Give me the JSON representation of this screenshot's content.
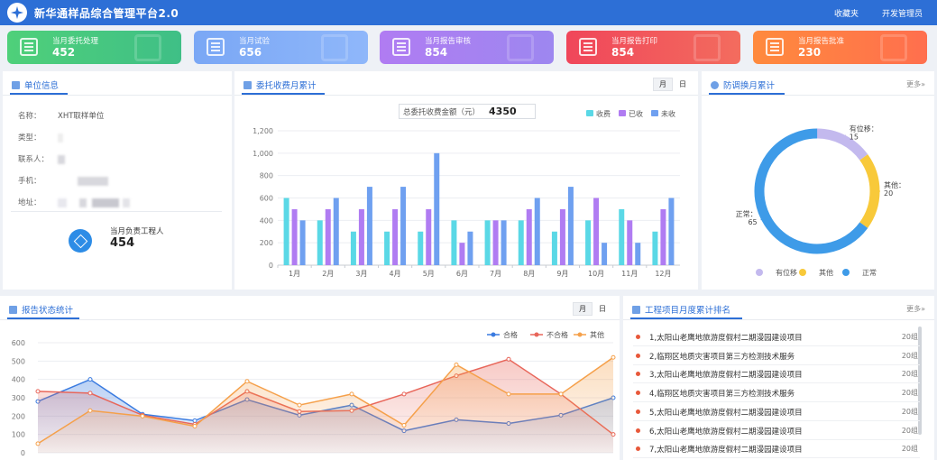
{
  "header": {
    "title": "新华通样品综合管理平台2.0",
    "links": [
      "收藏夹",
      "开发管理员"
    ]
  },
  "stats": [
    {
      "label": "当月委托处理",
      "value": "452",
      "color_a": "#4fd07a",
      "color_b": "#3fbf86"
    },
    {
      "label": "当月试验",
      "value": "656",
      "color_a": "#7aa7f5",
      "color_b": "#8fb7fa"
    },
    {
      "label": "当月报告审核",
      "value": "854",
      "color_a": "#b07cf2",
      "color_b": "#9d87f0"
    },
    {
      "label": "当月报告打印",
      "value": "854",
      "color_a": "#f0465a",
      "color_b": "#f36c5e"
    },
    {
      "label": "当月报告批准",
      "value": "230",
      "color_a": "#ff8a3d",
      "color_b": "#ff6f4e"
    }
  ],
  "unit": {
    "title": "单位信息",
    "rows": [
      {
        "key": "名称：",
        "value": "XHT取样单位"
      },
      {
        "key": "类型：",
        "value": ""
      },
      {
        "key": "联系人：",
        "value": ""
      },
      {
        "key": "手机：",
        "value": ""
      },
      {
        "key": "地址：",
        "value": ""
      }
    ],
    "engineer_label": "当月负责工程人",
    "engineer_value": "454"
  },
  "fee": {
    "title": "委托收费月累计",
    "toggle": [
      "月",
      "日"
    ],
    "total_label": "总委托收费金额（元）",
    "total_value": "4350"
  },
  "chart_data": [
    {
      "type": "bar",
      "categories": [
        "1月",
        "2月",
        "3月",
        "4月",
        "5月",
        "6月",
        "7月",
        "8月",
        "9月",
        "10月",
        "11月",
        "12月"
      ],
      "series": [
        {
          "name": "收费",
          "color": "#5ad8e6",
          "values": [
            600,
            400,
            300,
            300,
            300,
            400,
            400,
            400,
            300,
            400,
            500,
            300
          ]
        },
        {
          "name": "已收",
          "color": "#b07cf2",
          "values": [
            500,
            500,
            500,
            500,
            500,
            200,
            400,
            500,
            500,
            600,
            400,
            500
          ]
        },
        {
          "name": "未收",
          "color": "#6fa0f0",
          "values": [
            400,
            600,
            700,
            700,
            1000,
            300,
            400,
            600,
            700,
            200,
            200,
            600
          ]
        }
      ],
      "yticks": [
        "0",
        "200",
        "400",
        "600",
        "800",
        "1,000",
        "1,200"
      ],
      "ylim": [
        0,
        1200
      ],
      "grid": true,
      "legend": "top-right"
    },
    {
      "type": "pie",
      "categories": [
        "有位移",
        "其他",
        "正常"
      ],
      "values": [
        15,
        20,
        65
      ],
      "colors": [
        "#c3b9ee",
        "#f8c93a",
        "#3e9be8"
      ],
      "slice_labels": [
        "有位移：\n15",
        "其他：\n20",
        "正常：\n65"
      ],
      "legend": "bottom"
    },
    {
      "type": "area",
      "series": [
        {
          "name": "合格",
          "color": "#3a7be0",
          "values": [
            280,
            400,
            210,
            175,
            290,
            205,
            260,
            120,
            180,
            160,
            205,
            300
          ]
        },
        {
          "name": "不合格",
          "color": "#e8665a",
          "values": [
            335,
            325,
            205,
            155,
            335,
            225,
            230,
            320,
            420,
            510,
            320,
            100
          ]
        },
        {
          "name": "其他",
          "color": "#f5a04a",
          "values": [
            50,
            230,
            200,
            145,
            390,
            260,
            320,
            150,
            480,
            320,
            320,
            520
          ]
        }
      ],
      "yticks": [
        "0",
        "100",
        "200",
        "300",
        "400",
        "500",
        "600"
      ],
      "ylim": [
        0,
        600
      ],
      "grid": true,
      "legend": "top-right"
    }
  ],
  "fangtiao": {
    "title": "防调换月累计",
    "more": "更多»"
  },
  "report": {
    "title": "报告状态统计",
    "toggle": [
      "月",
      "日"
    ]
  },
  "ranking": {
    "title": "工程项目月度累计排名",
    "more": "更多»",
    "items": [
      {
        "name": "1,太阳山老鹰地旅游度假村二期漫园建设项目",
        "count": "20组"
      },
      {
        "name": "2,临翔区地质灾害项目第三方检测技术服务",
        "count": "20组"
      },
      {
        "name": "3,太阳山老鹰地旅游度假村二期漫园建设项目",
        "count": "20组"
      },
      {
        "name": "4,临翔区地质灾害项目第三方检测技术服务",
        "count": "20组"
      },
      {
        "name": "5,太阳山老鹰地旅游度假村二期漫园建设项目",
        "count": "20组"
      },
      {
        "name": "6,太阳山老鹰地旅游度假村二期漫园建设项目",
        "count": "20组"
      },
      {
        "name": "7,太阳山老鹰地旅游度假村二期漫园建设项目",
        "count": "20组"
      }
    ]
  }
}
